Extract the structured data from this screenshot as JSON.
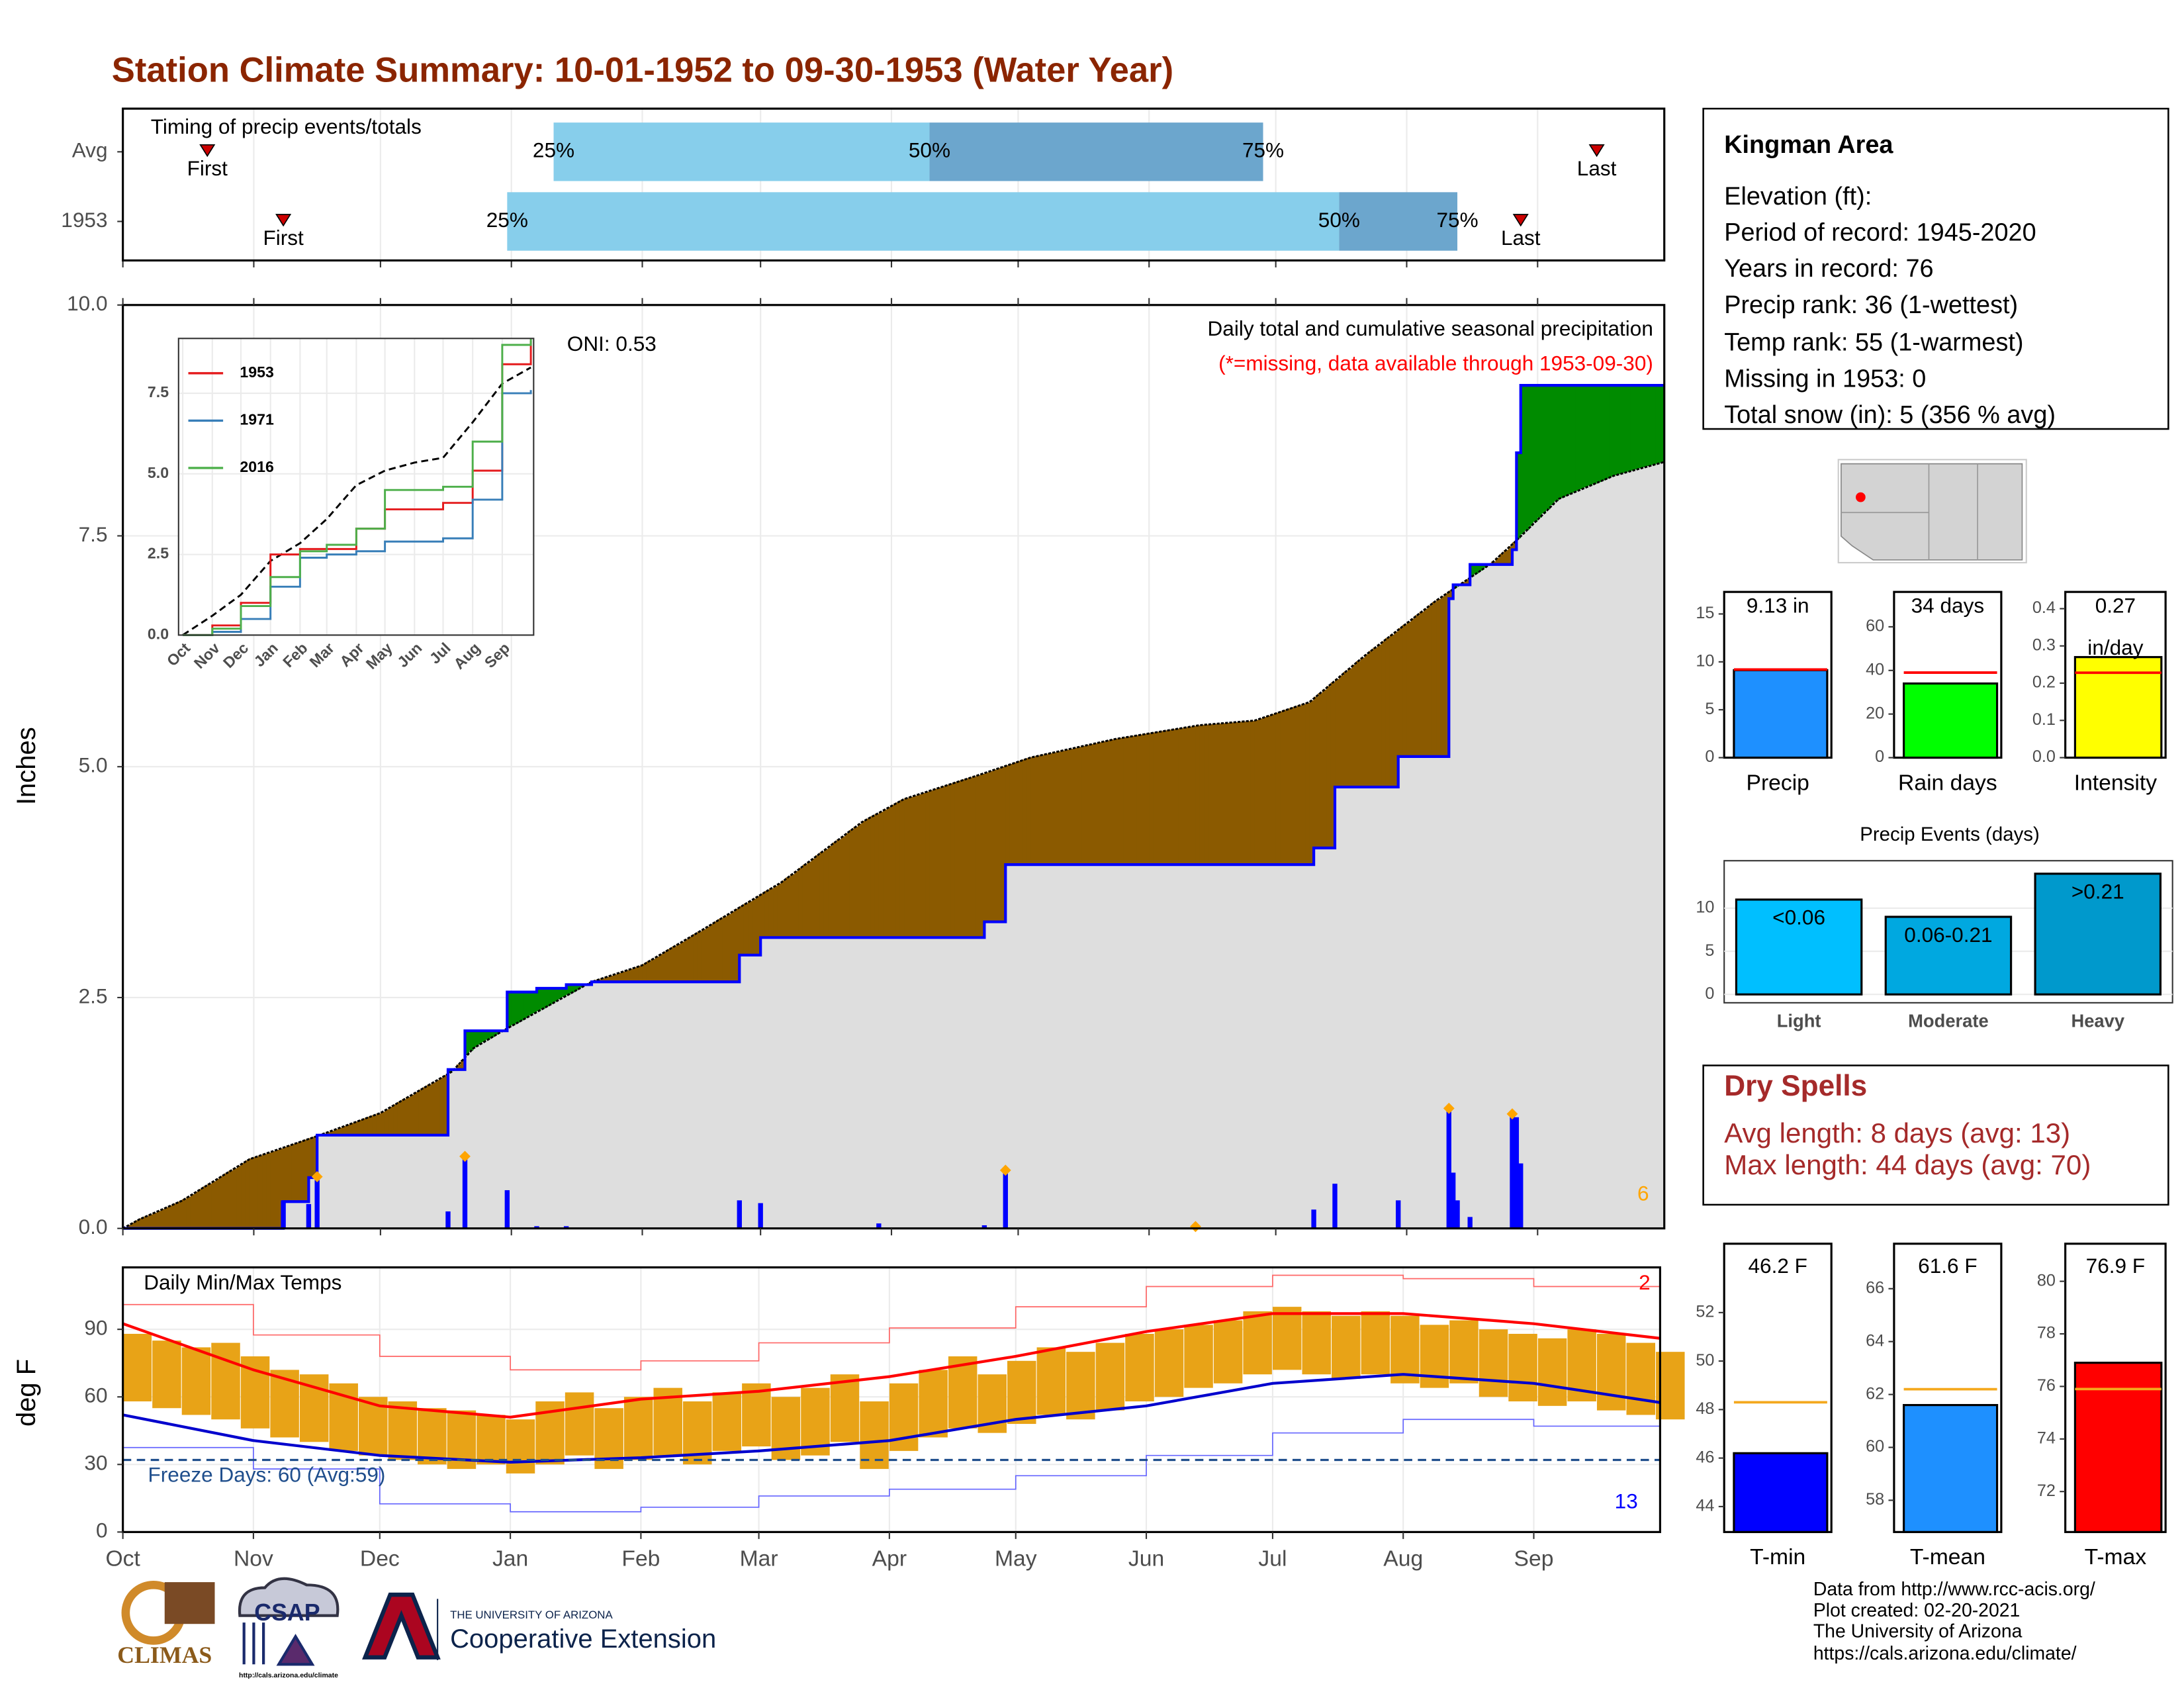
{
  "title": "Station Climate Summary: 10-01-1952 to 09-30-1953 (Water Year)",
  "station_info": {
    "name": "Kingman Area",
    "lines": [
      "Elevation (ft):",
      "Period of record: 1945-2020",
      "Years in record: 76",
      "Precip rank: 36 (1-wettest)",
      "Temp rank: 55 (1-warmest)",
      "Missing in 1953: 0",
      "Total snow (in): 5 (356 % avg)"
    ]
  },
  "dry_spells": {
    "title": "Dry Spells",
    "lines": [
      "Avg length: 8 days (avg: 13)",
      "Max length: 44 days (avg: 70)"
    ]
  },
  "footer": [
    "Data from http://www.rcc-acis.org/",
    "Plot created: 02-20-2021",
    "The University of Arizona",
    "https://cals.arizona.edu/climate/"
  ],
  "logos": {
    "climas": "CLIMAS",
    "csap": "CSAP",
    "csap_url": "http://cals.arizona.edu/climate",
    "university": "THE UNIVERSITY OF ARIZONA",
    "extension": "Cooperative Extension"
  },
  "chart_data": [
    {
      "type": "timing",
      "title": "Timing of precip events/totals",
      "categories": [
        "Avg",
        "1953"
      ],
      "point_labels": [
        "First",
        "25%",
        "50%",
        "75%",
        "Last"
      ],
      "values": [
        [
          20,
          102,
          191,
          270,
          349
        ],
        [
          38,
          91,
          288,
          316,
          331
        ]
      ],
      "colors": [
        "#87ceeb",
        "#6ca6cd"
      ],
      "marker_color": "#cc0000",
      "xlim": [
        0,
        365
      ]
    },
    {
      "type": "cumulative_precip",
      "title": "Daily total and cumulative seasonal precipitation",
      "subtitle": "(*=missing, data available through 1953-09-30)",
      "annotation": "ONI: 0.53",
      "extreme_count": 6,
      "ylabel": "Inches",
      "xlim": [
        0,
        365
      ],
      "ylim": [
        0,
        10
      ],
      "yticks": [
        {
          "value": 0,
          "label": "0.0"
        },
        {
          "value": 2.5,
          "label": "2.5"
        },
        {
          "value": 5,
          "label": "5.0"
        },
        {
          "value": 7.5,
          "label": "7.5"
        },
        {
          "value": 10,
          "label": "10.0"
        }
      ],
      "grid": true,
      "normal": {
        "x": [
          0,
          4,
          14,
          30,
          46,
          61,
          78,
          83,
          90,
          111,
          123,
          136,
          156,
          175,
          185,
          202,
          215,
          235,
          255,
          268,
          281,
          294,
          311,
          324,
          330,
          340,
          353,
          365
        ],
        "values": [
          0,
          0.1,
          0.3,
          0.75,
          1.0,
          1.25,
          1.7,
          1.95,
          2.14,
          2.67,
          2.85,
          3.2,
          3.75,
          4.4,
          4.65,
          4.9,
          5.1,
          5.3,
          5.45,
          5.5,
          5.7,
          6.2,
          6.8,
          7.2,
          7.45,
          7.9,
          8.15,
          8.3
        ],
        "color": "#dedede"
      },
      "observed": {
        "x": [
          0,
          38,
          44,
          46,
          77,
          81,
          91,
          98,
          105,
          111,
          146,
          151,
          204,
          209,
          282,
          287,
          302,
          314,
          315,
          319,
          329,
          330,
          331
        ],
        "values": [
          0,
          0.29,
          0.55,
          1.01,
          1.72,
          2.14,
          2.56,
          2.6,
          2.64,
          2.67,
          2.96,
          3.15,
          3.32,
          3.94,
          4.12,
          4.78,
          5.11,
          6.82,
          6.97,
          7.19,
          7.35,
          8.4,
          9.13
        ],
        "color": "#0000ff"
      },
      "daily": {
        "x": [
          38,
          44,
          46,
          77,
          81,
          91,
          98,
          105,
          146,
          151,
          179,
          204,
          209,
          254,
          282,
          287,
          302,
          314,
          315,
          316,
          319,
          329,
          330,
          331
        ],
        "values": [
          0.3,
          0.26,
          0.56,
          0.18,
          0.78,
          0.41,
          0.02,
          0.02,
          0.3,
          0.27,
          0.05,
          0.03,
          0.63,
          0.02,
          0.2,
          0.48,
          0.3,
          1.3,
          0.6,
          0.3,
          0.12,
          1.24,
          1.2,
          0.7
        ],
        "flagged": [
          false,
          false,
          true,
          false,
          true,
          false,
          false,
          false,
          false,
          false,
          false,
          false,
          true,
          true,
          false,
          false,
          false,
          true,
          false,
          false,
          false,
          true,
          false,
          false
        ],
        "color": "#0000ff",
        "flag_color": "#ffa500"
      },
      "deficit_color": "#8b5a00",
      "surplus_color": "#008b00"
    },
    {
      "type": "line_inset",
      "xlim": [
        0,
        365
      ],
      "ylim": [
        0,
        9.2
      ],
      "yticks": [
        {
          "value": 0,
          "label": "0.0"
        },
        {
          "value": 2.5,
          "label": "2.5"
        },
        {
          "value": 5,
          "label": "5.0"
        },
        {
          "value": 7.5,
          "label": "7.5"
        }
      ],
      "xticks": [
        {
          "value": 0,
          "label": "Oct"
        },
        {
          "value": 31,
          "label": "Nov"
        },
        {
          "value": 61,
          "label": "Dec"
        },
        {
          "value": 92,
          "label": "Jan"
        },
        {
          "value": 123,
          "label": "Feb"
        },
        {
          "value": 151,
          "label": "Mar"
        },
        {
          "value": 182,
          "label": "Apr"
        },
        {
          "value": 212,
          "label": "May"
        },
        {
          "value": 243,
          "label": "Jun"
        },
        {
          "value": 273,
          "label": "Jul"
        },
        {
          "value": 304,
          "label": "Aug"
        },
        {
          "value": 335,
          "label": "Sep"
        }
      ],
      "x": [
        0,
        31,
        61,
        92,
        123,
        151,
        182,
        212,
        243,
        273,
        304,
        335,
        365
      ],
      "series": [
        {
          "name": "1953",
          "color": "#e41a1c",
          "values": [
            0,
            0.3,
            1.0,
            2.5,
            2.67,
            2.67,
            3.3,
            3.9,
            3.9,
            4.1,
            5.1,
            8.4,
            9.13
          ]
        },
        {
          "name": "1971",
          "color": "#377eb8",
          "values": [
            0,
            0.1,
            0.5,
            1.5,
            2.4,
            2.5,
            2.6,
            2.9,
            2.9,
            3.0,
            4.2,
            7.5,
            7.6
          ]
        },
        {
          "name": "2016",
          "color": "#4daf4a",
          "values": [
            0,
            0.2,
            0.9,
            1.8,
            2.6,
            2.8,
            3.3,
            4.5,
            4.5,
            4.6,
            6.0,
            9.0,
            9.2
          ]
        }
      ],
      "normal_values": [
        0,
        0.6,
        1.25,
        2.3,
        2.85,
        3.6,
        4.65,
        5.1,
        5.35,
        5.5,
        6.6,
        7.8,
        8.3
      ],
      "normal_color": "#000000"
    },
    {
      "type": "temperature",
      "title": "Daily Min/Max Temps",
      "ylabel": "deg F",
      "xlim": [
        0,
        365
      ],
      "ylim": [
        0,
        117.5
      ],
      "yticks": [
        0,
        30,
        60,
        90
      ],
      "xticks": [
        {
          "value": 0,
          "label": "Oct"
        },
        {
          "value": 31,
          "label": "Nov"
        },
        {
          "value": 61,
          "label": "Dec"
        },
        {
          "value": 92,
          "label": "Jan"
        },
        {
          "value": 123,
          "label": "Feb"
        },
        {
          "value": 151,
          "label": "Mar"
        },
        {
          "value": 182,
          "label": "Apr"
        },
        {
          "value": 212,
          "label": "May"
        },
        {
          "value": 243,
          "label": "Jun"
        },
        {
          "value": 273,
          "label": "Jul"
        },
        {
          "value": 304,
          "label": "Aug"
        },
        {
          "value": 335,
          "label": "Sep"
        }
      ],
      "freeze_label": "Freeze Days: 60 (Avg:59)",
      "freeze_threshold": 32,
      "record_high_count": 2,
      "record_low_count": 13,
      "observed": {
        "x": [
          0,
          7,
          14,
          21,
          28,
          35,
          42,
          49,
          56,
          63,
          70,
          77,
          84,
          91,
          98,
          105,
          112,
          119,
          126,
          133,
          140,
          147,
          154,
          161,
          168,
          175,
          182,
          189,
          196,
          203,
          210,
          217,
          224,
          231,
          238,
          245,
          252,
          259,
          266,
          273,
          280,
          287,
          294,
          301,
          308,
          315,
          322,
          329,
          336,
          343,
          350,
          357,
          364
        ],
        "max": [
          88,
          85,
          82,
          84,
          78,
          72,
          70,
          66,
          60,
          58,
          55,
          54,
          52,
          50,
          58,
          62,
          55,
          60,
          64,
          58,
          62,
          66,
          60,
          64,
          70,
          58,
          66,
          72,
          78,
          70,
          76,
          82,
          80,
          84,
          88,
          90,
          92,
          94,
          98,
          100,
          98,
          96,
          98,
          96,
          92,
          94,
          90,
          88,
          86,
          90,
          88,
          84,
          80
        ],
        "min": [
          58,
          55,
          52,
          50,
          46,
          42,
          40,
          36,
          34,
          32,
          30,
          28,
          30,
          26,
          30,
          34,
          28,
          32,
          34,
          30,
          36,
          38,
          32,
          34,
          40,
          28,
          36,
          42,
          46,
          44,
          48,
          52,
          50,
          54,
          58,
          60,
          64,
          66,
          70,
          72,
          70,
          68,
          70,
          66,
          64,
          66,
          60,
          58,
          56,
          58,
          54,
          52,
          50
        ],
        "color": "#e8a317"
      },
      "normals": {
        "x": [
          0,
          31,
          61,
          92,
          123,
          151,
          182,
          212,
          243,
          273,
          304,
          335,
          365
        ],
        "max": [
          92.5,
          72,
          56,
          51,
          59,
          62.5,
          69,
          78,
          89,
          97,
          97,
          92.5,
          86
        ],
        "min": [
          52,
          40.6,
          34,
          31,
          33,
          36,
          40.6,
          50,
          56,
          66,
          70,
          66,
          57.5
        ],
        "max_color": "#ff0000",
        "min_color": "#0000cd"
      },
      "records": {
        "x": [
          0,
          31,
          61,
          92,
          123,
          151,
          182,
          212,
          243,
          273,
          304,
          335,
          365
        ],
        "high": [
          101,
          87.5,
          78,
          72,
          76,
          84,
          90.6,
          100,
          109,
          114,
          112.5,
          109,
          100
        ],
        "low": [
          37.5,
          28,
          12.5,
          9,
          11,
          16,
          19,
          25,
          34,
          44,
          50,
          47,
          37.5
        ],
        "high_color": "#ff6666",
        "low_color": "#6666ff"
      },
      "freeze_color": "#1f4e8c"
    },
    {
      "type": "summary_bar",
      "category": "Precip",
      "value": 9.13,
      "value_label": [
        "9.13 in"
      ],
      "average": 9.2,
      "color": "#1e90ff",
      "average_color": "#ff0000",
      "ylim": [
        0,
        17.3
      ],
      "yticks": [
        0,
        5,
        10,
        15
      ]
    },
    {
      "type": "summary_bar",
      "category": "Rain days",
      "value": 34,
      "value_label": [
        "34 days"
      ],
      "average": 39,
      "color": "#00ff00",
      "average_color": "#ff0000",
      "ylim": [
        0,
        76
      ],
      "yticks": [
        0,
        20,
        40,
        60
      ]
    },
    {
      "type": "summary_bar",
      "category": "Intensity",
      "value": 0.27,
      "value_label": [
        "0.27",
        "in/day"
      ],
      "average": 0.228,
      "color": "#ffff00",
      "average_color": "#ff0000",
      "ylim": [
        0,
        0.445
      ],
      "yticks": [
        {
          "value": 0,
          "label": "0.0"
        },
        0.1,
        0.2,
        0.3,
        0.4
      ]
    },
    {
      "type": "event_bar",
      "title": "Precip Events (days)",
      "categories": [
        "Light",
        "Moderate",
        "Heavy"
      ],
      "bar_labels": [
        "<0.06",
        "0.06-0.21",
        ">0.21"
      ],
      "values": [
        11,
        9,
        14
      ],
      "colors": [
        "#00bfff",
        "#00a8e0",
        "#0099cc"
      ],
      "ylim": [
        0,
        14.7
      ],
      "yticks": [
        0,
        5,
        10
      ]
    },
    {
      "type": "summary_bar",
      "category": "T-min",
      "value": 46.2,
      "value_label": [
        "46.2 F"
      ],
      "average": 48.3,
      "color": "#0000ff",
      "average_color": "#f4a81d",
      "ylim": [
        42.95,
        54.84
      ],
      "yticks": [
        44,
        46,
        48,
        50,
        52
      ]
    },
    {
      "type": "summary_bar",
      "category": "T-mean",
      "value": 61.6,
      "value_label": [
        "61.6 F"
      ],
      "average": 62.2,
      "color": "#1e90ff",
      "average_color": "#f4a81d",
      "ylim": [
        56.8,
        67.7
      ],
      "yticks": [
        58,
        60,
        62,
        64,
        66
      ]
    },
    {
      "type": "summary_bar",
      "category": "T-max",
      "value": 76.9,
      "value_label": [
        "76.9 F"
      ],
      "average": 75.9,
      "color": "#ff0000",
      "average_color": "#f4a81d",
      "ylim": [
        70.46,
        81.43
      ],
      "yticks": [
        72,
        74,
        76,
        78,
        80
      ]
    }
  ]
}
